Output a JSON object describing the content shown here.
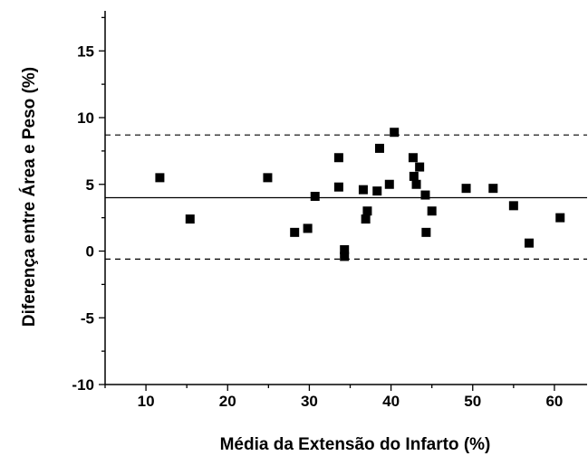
{
  "chart_data": {
    "type": "scatter",
    "xlabel": "Média da Extensão do Infarto (%)",
    "ylabel": "Diferença entre Área e Peso (%)",
    "xlim": [
      5,
      64
    ],
    "ylim": [
      -10,
      18
    ],
    "xticks": [
      10,
      20,
      30,
      40,
      50,
      60
    ],
    "yticks": [
      -10,
      -5,
      0,
      5,
      10,
      15
    ],
    "mean_line": 4.0,
    "upper_limit": 8.7,
    "lower_limit": -0.6,
    "grid": false,
    "marker": "square",
    "color": "#000000",
    "points": [
      {
        "x": 11.7,
        "y": 5.5
      },
      {
        "x": 15.4,
        "y": 2.4
      },
      {
        "x": 24.9,
        "y": 5.5
      },
      {
        "x": 28.2,
        "y": 1.4
      },
      {
        "x": 29.8,
        "y": 1.7
      },
      {
        "x": 30.7,
        "y": 4.1
      },
      {
        "x": 33.6,
        "y": 4.8
      },
      {
        "x": 33.6,
        "y": 7.0
      },
      {
        "x": 34.3,
        "y": 0.1
      },
      {
        "x": 34.3,
        "y": -0.4
      },
      {
        "x": 36.6,
        "y": 4.6
      },
      {
        "x": 36.9,
        "y": 2.4
      },
      {
        "x": 37.1,
        "y": 3.0
      },
      {
        "x": 38.3,
        "y": 4.5
      },
      {
        "x": 38.6,
        "y": 7.7
      },
      {
        "x": 39.8,
        "y": 5.0
      },
      {
        "x": 40.4,
        "y": 8.9
      },
      {
        "x": 42.7,
        "y": 7.0
      },
      {
        "x": 42.8,
        "y": 5.6
      },
      {
        "x": 43.1,
        "y": 5.0
      },
      {
        "x": 43.5,
        "y": 6.3
      },
      {
        "x": 44.2,
        "y": 4.2
      },
      {
        "x": 44.3,
        "y": 1.4
      },
      {
        "x": 45.0,
        "y": 3.0
      },
      {
        "x": 49.2,
        "y": 4.7
      },
      {
        "x": 52.5,
        "y": 4.7
      },
      {
        "x": 55.0,
        "y": 3.4
      },
      {
        "x": 56.9,
        "y": 0.6
      },
      {
        "x": 60.7,
        "y": 2.5
      }
    ]
  }
}
